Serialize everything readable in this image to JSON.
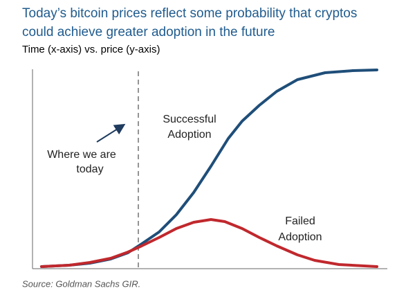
{
  "header": {
    "title": [
      "Today’s bitcoin prices reflect some probability that cryptos",
      "could achieve greater adoption in the future"
    ],
    "subtitle": "Time (x-axis) vs. price (y-axis)"
  },
  "annotations": {
    "successful": [
      "Successful",
      "Adoption"
    ],
    "failed": [
      "Failed",
      "Adoption"
    ],
    "today": [
      "Where we are",
      "today"
    ]
  },
  "source": "Source: Goldman Sachs GIR."
}
